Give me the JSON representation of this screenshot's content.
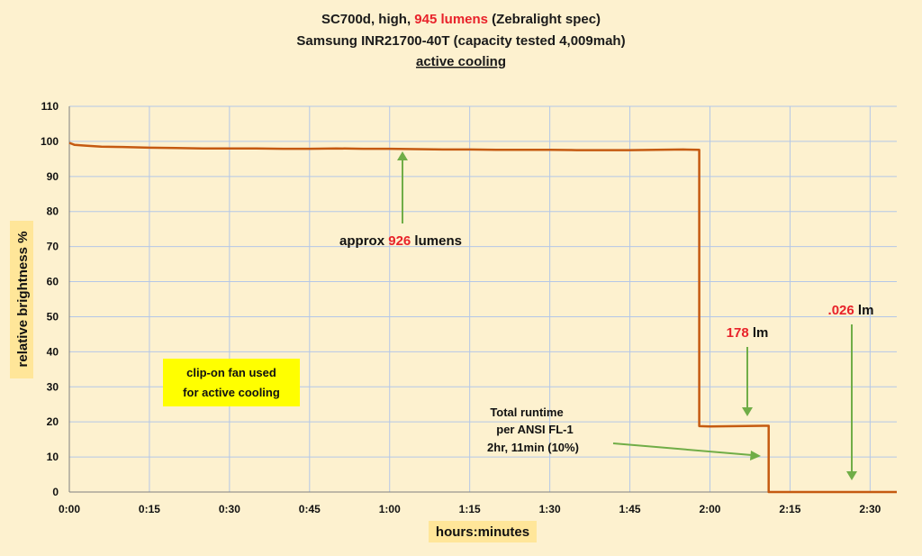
{
  "chart_data": {
    "type": "line",
    "title_lines": [
      {
        "parts": [
          "SC700d, high, ",
          "945 lumens",
          " (Zebralight spec)"
        ]
      },
      {
        "parts": [
          "Samsung INR21700-40T (capacity tested 4,009mah)"
        ]
      },
      {
        "parts": [
          "active cooling"
        ]
      }
    ],
    "xlabel": "hours:minutes",
    "ylabel": "relative brightness  %",
    "x_ticks": [
      "0:00",
      "0:15",
      "0:30",
      "0:45",
      "1:00",
      "1:15",
      "1:30",
      "1:45",
      "2:00",
      "2:15",
      "2:30"
    ],
    "x_tick_minutes": [
      0,
      15,
      30,
      45,
      60,
      75,
      90,
      105,
      120,
      135,
      150
    ],
    "xlim": [
      0,
      155
    ],
    "y_ticks": [
      "0",
      "10",
      "20",
      "30",
      "40",
      "50",
      "60",
      "70",
      "80",
      "90",
      "100",
      "110"
    ],
    "ylim": [
      0,
      110
    ],
    "grid": true,
    "line_color": "#c55a11",
    "series": [
      {
        "x": [
          0,
          1,
          3,
          6,
          10,
          15,
          20,
          25,
          30,
          35,
          40,
          45,
          50,
          55,
          60,
          65,
          70,
          75,
          80,
          85,
          90,
          95,
          100,
          105,
          110,
          115,
          118,
          118,
          120,
          125,
          130,
          131,
          131,
          135,
          140,
          145,
          150,
          155
        ],
        "y": [
          99.6,
          99.0,
          98.8,
          98.5,
          98.4,
          98.2,
          98.1,
          98.0,
          98.0,
          98.0,
          97.9,
          97.9,
          98.0,
          97.9,
          97.9,
          97.8,
          97.7,
          97.7,
          97.6,
          97.6,
          97.6,
          97.5,
          97.5,
          97.5,
          97.6,
          97.7,
          97.6,
          18.8,
          18.7,
          18.8,
          18.9,
          18.9,
          0,
          0,
          0,
          0,
          0,
          0
        ]
      }
    ],
    "annotations": {
      "approx": {
        "pre": "approx ",
        "val": "926",
        "post": " lumens"
      },
      "fan": [
        "clip-on fan used",
        "for active cooling"
      ],
      "runtime": [
        "Total runtime",
        "per ANSI FL-1",
        "2hr, 11min (10%)"
      ],
      "lm178": {
        "val": "178",
        "post": " lm"
      },
      "lm026": {
        "val": ".026",
        "post": " lm"
      }
    }
  }
}
